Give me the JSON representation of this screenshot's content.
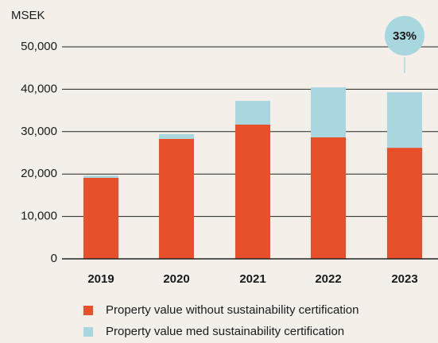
{
  "chart_data": {
    "type": "stacked_bar",
    "y_label": "MSEK",
    "annotation": "33%",
    "categories": [
      "2019",
      "2020",
      "2021",
      "2022",
      "2023"
    ],
    "series": [
      {
        "name": "Property value without sustainability certification",
        "color": "#e8502b",
        "values": [
          19100,
          28300,
          31650,
          28650,
          26200
        ]
      },
      {
        "name": "Property value med sustainability certification",
        "color": "#a8d7df",
        "values": [
          500,
          1100,
          5600,
          11800,
          13100
        ]
      }
    ],
    "ylim": [
      0,
      50000
    ],
    "yticks": [
      0,
      {
        "value": 10000,
        "label": "10,000"
      },
      {
        "value": 20000,
        "label": "20,000"
      },
      {
        "value": 30000,
        "label": "30,000"
      },
      {
        "value": 40000,
        "label": "40,000"
      },
      {
        "value": 50000,
        "label": "50,000"
      }
    ],
    "grid": true
  }
}
